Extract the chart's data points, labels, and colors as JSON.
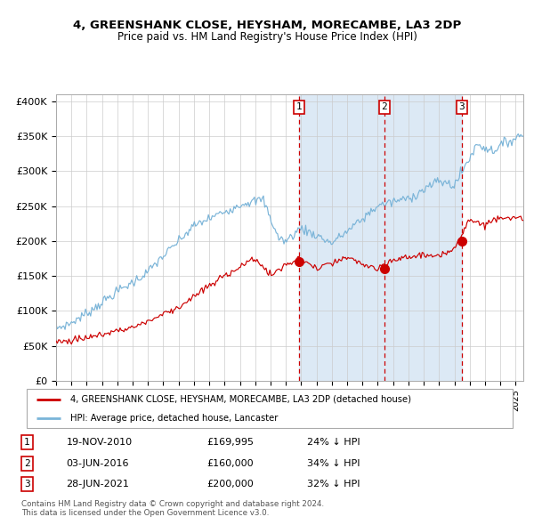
{
  "title1": "4, GREENSHANK CLOSE, HEYSHAM, MORECAMBE, LA3 2DP",
  "title2": "Price paid vs. HM Land Registry's House Price Index (HPI)",
  "ylabel_ticks": [
    "£0",
    "£50K",
    "£100K",
    "£150K",
    "£200K",
    "£250K",
    "£300K",
    "£350K",
    "£400K"
  ],
  "ytick_values": [
    0,
    50000,
    100000,
    150000,
    200000,
    250000,
    300000,
    350000,
    400000
  ],
  "ylim": [
    0,
    410000
  ],
  "xlim_start": 1995.0,
  "xlim_end": 2025.5,
  "hpi_color": "#7ab4d8",
  "price_color": "#cc0000",
  "dashed_line_color": "#cc0000",
  "shading_color": "#dce9f5",
  "sale1_x": 2010.88,
  "sale1_y": 169995,
  "sale2_x": 2016.42,
  "sale2_y": 160000,
  "sale3_x": 2021.49,
  "sale3_y": 200000,
  "sale1_label": "19-NOV-2010",
  "sale1_price": "£169,995",
  "sale1_note": "24% ↓ HPI",
  "sale2_label": "03-JUN-2016",
  "sale2_price": "£160,000",
  "sale2_note": "34% ↓ HPI",
  "sale3_label": "28-JUN-2021",
  "sale3_price": "£200,000",
  "sale3_note": "32% ↓ HPI",
  "legend_label1": "4, GREENSHANK CLOSE, HEYSHAM, MORECAMBE, LA3 2DP (detached house)",
  "legend_label2": "HPI: Average price, detached house, Lancaster",
  "footnote1": "Contains HM Land Registry data © Crown copyright and database right 2024.",
  "footnote2": "This data is licensed under the Open Government Licence v3.0."
}
